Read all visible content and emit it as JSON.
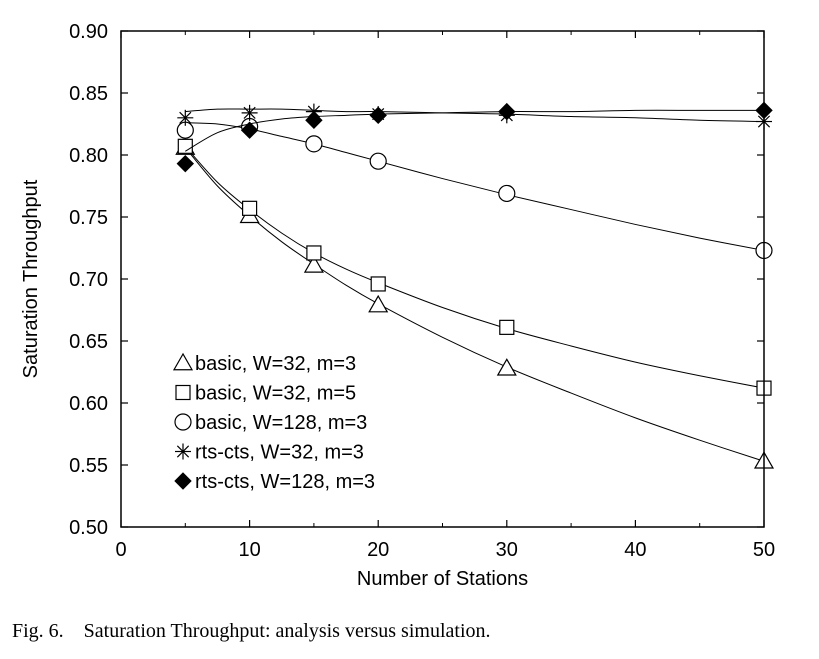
{
  "chart_data": {
    "type": "line",
    "xlabel": "Number of Stations",
    "ylabel": "Saturation Throughput",
    "xlim": [
      0,
      50
    ],
    "ylim": [
      0.5,
      0.9
    ],
    "x_ticks": [
      "0",
      "10",
      "20",
      "30",
      "40",
      "50"
    ],
    "y_ticks": [
      "0.50",
      "0.55",
      "0.60",
      "0.65",
      "0.70",
      "0.75",
      "0.80",
      "0.85",
      "0.90"
    ],
    "grid": false,
    "legend_position": "bottom-left",
    "series": [
      {
        "name": "basic, W=32, m=3",
        "marker": "triangle-open",
        "x": [
          5,
          10,
          15,
          20,
          30,
          50
        ],
        "values": [
          0.806,
          0.751,
          0.711,
          0.679,
          0.628,
          0.553
        ],
        "curve_x": [
          5,
          7.5,
          10,
          12.5,
          15,
          17.5,
          20,
          25,
          30,
          35,
          40,
          45,
          50
        ],
        "curve_values": [
          0.806,
          0.775,
          0.751,
          0.73,
          0.712,
          0.695,
          0.68,
          0.653,
          0.629,
          0.608,
          0.588,
          0.57,
          0.553
        ]
      },
      {
        "name": "basic, W=32, m=5",
        "marker": "square-open",
        "x": [
          5,
          10,
          15,
          20,
          30,
          50
        ],
        "values": [
          0.807,
          0.757,
          0.721,
          0.696,
          0.661,
          0.612
        ],
        "curve_x": [
          5,
          7.5,
          10,
          12.5,
          15,
          17.5,
          20,
          25,
          30,
          35,
          40,
          45,
          50
        ],
        "curve_values": [
          0.807,
          0.778,
          0.756,
          0.737,
          0.721,
          0.708,
          0.697,
          0.677,
          0.66,
          0.646,
          0.633,
          0.622,
          0.612
        ]
      },
      {
        "name": "basic, W=128, m=3",
        "marker": "circle-open",
        "x": [
          5,
          10,
          15,
          20,
          30,
          50
        ],
        "values": [
          0.82,
          0.823,
          0.809,
          0.795,
          0.769,
          0.723
        ],
        "curve_x": [
          5,
          7.5,
          10,
          12.5,
          15,
          17.5,
          20,
          25,
          30,
          35,
          40,
          45,
          50
        ],
        "curve_values": [
          0.826,
          0.825,
          0.821,
          0.815,
          0.809,
          0.802,
          0.795,
          0.781,
          0.768,
          0.756,
          0.744,
          0.733,
          0.723
        ]
      },
      {
        "name": "rts-cts, W=32, m=3",
        "marker": "asterisk",
        "x": [
          5,
          10,
          15,
          20,
          30,
          50
        ],
        "values": [
          0.83,
          0.834,
          0.835,
          0.833,
          0.832,
          0.827
        ],
        "curve_x": [
          5,
          7.5,
          10,
          12.5,
          15,
          17.5,
          20,
          25,
          30,
          35,
          40,
          45,
          50
        ],
        "curve_values": [
          0.835,
          0.837,
          0.837,
          0.837,
          0.836,
          0.835,
          0.835,
          0.834,
          0.833,
          0.831,
          0.83,
          0.828,
          0.827
        ]
      },
      {
        "name": "rts-cts, W=128, m=3",
        "marker": "diamond-filled",
        "x": [
          5,
          10,
          15,
          20,
          30,
          50
        ],
        "values": [
          0.793,
          0.82,
          0.828,
          0.832,
          0.835,
          0.836
        ],
        "curve_x": [
          5,
          7.5,
          10,
          12.5,
          15,
          17.5,
          20,
          25,
          30,
          35,
          40,
          45,
          50
        ],
        "curve_values": [
          0.803,
          0.818,
          0.825,
          0.829,
          0.831,
          0.832,
          0.833,
          0.834,
          0.835,
          0.835,
          0.836,
          0.836,
          0.836
        ]
      }
    ]
  },
  "caption": "Fig. 6.    Saturation Throughput: analysis versus simulation."
}
